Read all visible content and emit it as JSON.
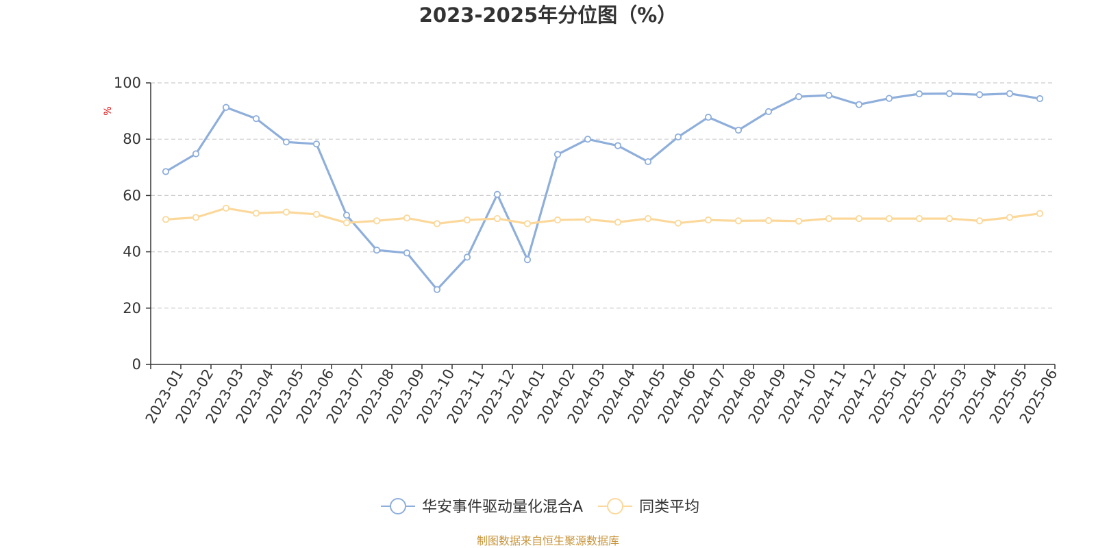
{
  "chart_data": {
    "type": "line",
    "title": "2023-2025年分位图（%）",
    "ylabel": "%",
    "xlabel": "",
    "ylim": [
      0,
      100
    ],
    "yticks": [
      0,
      20,
      40,
      60,
      80,
      100
    ],
    "grid": true,
    "legend_position": "bottom-center",
    "x": [
      "2023-01",
      "2023-02",
      "2023-03",
      "2023-04",
      "2023-05",
      "2023-06",
      "2023-07",
      "2023-08",
      "2023-09",
      "2023-10",
      "2023-11",
      "2023-12",
      "2024-01",
      "2024-02",
      "2024-03",
      "2024-04",
      "2024-05",
      "2024-06",
      "2024-07",
      "2024-08",
      "2024-09",
      "2024-10",
      "2024-11",
      "2024-12",
      "2025-01",
      "2025-02",
      "2025-03",
      "2025-04",
      "2025-05",
      "2025-06"
    ],
    "series": [
      {
        "name": "华安事件驱动量化混合A",
        "color": "#8eaedb",
        "values": [
          68.5,
          74.8,
          91.3,
          87.3,
          79.0,
          78.3,
          53.0,
          40.6,
          39.6,
          26.6,
          38.1,
          60.4,
          37.2,
          74.6,
          80.0,
          77.7,
          72.0,
          80.8,
          87.8,
          83.2,
          89.8,
          95.1,
          95.6,
          92.3,
          94.5,
          96.1,
          96.2,
          95.8,
          96.2,
          94.4
        ]
      },
      {
        "name": "同类平均",
        "color": "#fbd89a",
        "values": [
          51.5,
          52.2,
          55.5,
          53.7,
          54.1,
          53.3,
          50.3,
          51.0,
          52.0,
          50.0,
          51.3,
          51.8,
          50.0,
          51.3,
          51.5,
          50.5,
          51.8,
          50.2,
          51.3,
          51.0,
          51.1,
          50.9,
          51.8,
          51.8,
          51.8,
          51.8,
          51.8,
          51.0,
          52.2,
          53.6
        ]
      }
    ]
  },
  "footer": {
    "source": "制图数据来自恒生聚源数据库"
  },
  "colors": {
    "axis": "#333333",
    "grid": "#cccccc",
    "ylabel": "#e00000",
    "source": "#c8963e"
  }
}
